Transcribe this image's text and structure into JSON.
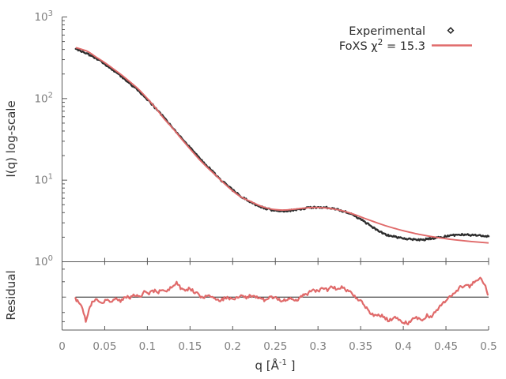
{
  "figure": {
    "background": "#ffffff",
    "xlabel_parts": {
      "base": "q [Å",
      "sup": "-1",
      "close": " ]"
    },
    "ylabel_main": "I(q) log-scale",
    "ylabel_residual": "Residual",
    "legend": {
      "experimental_label": "Experimental",
      "fit_label_prefix": "FoXS χ",
      "fit_label_sup": "2",
      "fit_label_suffix": " = 15.3",
      "marker": "diamond-icon",
      "line_color": "#e06a6a",
      "marker_color": "#222222"
    },
    "colors": {
      "experimental": "#2e2e2e",
      "fit": "#e06a6a",
      "border": "#595959",
      "tick_label": "#7f7f7f",
      "axis_label": "#333333",
      "refline": "#1a1a1a"
    },
    "x_ticks": [
      {
        "v": 0.0,
        "label": "0"
      },
      {
        "v": 0.05,
        "label": "0.05"
      },
      {
        "v": 0.1,
        "label": "0.1"
      },
      {
        "v": 0.15,
        "label": "0.15"
      },
      {
        "v": 0.2,
        "label": "0.2"
      },
      {
        "v": 0.25,
        "label": "0.25"
      },
      {
        "v": 0.3,
        "label": "0.3"
      },
      {
        "v": 0.35,
        "label": "0.35"
      },
      {
        "v": 0.4,
        "label": "0.4"
      },
      {
        "v": 0.45,
        "label": "0.45"
      },
      {
        "v": 0.5,
        "label": "0.5"
      }
    ],
    "y_ticks_main_exponents": [
      0,
      1,
      2,
      3
    ]
  },
  "chart_data": [
    {
      "type": "line",
      "panel": "main",
      "xlabel": "q [Å^-1]",
      "ylabel": "I(q) log-scale",
      "xlim": [
        0,
        0.5
      ],
      "ylim": [
        1,
        1000
      ],
      "yscale": "log",
      "grid": false,
      "legend_position": "top-right",
      "series": [
        {
          "name": "Experimental",
          "style": "noisy-points",
          "color": "#2e2e2e",
          "points": [
            [
              0.016,
              400
            ],
            [
              0.02,
              391
            ],
            [
              0.024,
              378
            ],
            [
              0.028,
              361
            ],
            [
              0.032,
              344
            ],
            [
              0.036,
              327
            ],
            [
              0.04,
              308
            ],
            [
              0.045,
              286
            ],
            [
              0.05,
              264
            ],
            [
              0.055,
              243
            ],
            [
              0.06,
              222
            ],
            [
              0.065,
              203
            ],
            [
              0.07,
              185
            ],
            [
              0.075,
              168
            ],
            [
              0.08,
              152
            ],
            [
              0.085,
              137
            ],
            [
              0.09,
              123
            ],
            [
              0.095,
              110
            ],
            [
              0.1,
              98
            ],
            [
              0.105,
              86
            ],
            [
              0.11,
              75.5
            ],
            [
              0.115,
              66
            ],
            [
              0.12,
              57.5
            ],
            [
              0.125,
              50
            ],
            [
              0.13,
              43.5
            ],
            [
              0.135,
              37.8
            ],
            [
              0.14,
              32.8
            ],
            [
              0.145,
              28.6
            ],
            [
              0.15,
              25.0
            ],
            [
              0.155,
              21.9
            ],
            [
              0.16,
              19.2
            ],
            [
              0.165,
              16.9
            ],
            [
              0.17,
              14.9
            ],
            [
              0.175,
              13.2
            ],
            [
              0.18,
              11.7
            ],
            [
              0.185,
              10.4
            ],
            [
              0.19,
              9.3
            ],
            [
              0.195,
              8.35
            ],
            [
              0.2,
              7.55
            ],
            [
              0.21,
              6.3
            ],
            [
              0.22,
              5.45
            ],
            [
              0.23,
              4.85
            ],
            [
              0.24,
              4.45
            ],
            [
              0.25,
              4.22
            ],
            [
              0.26,
              4.18
            ],
            [
              0.27,
              4.26
            ],
            [
              0.28,
              4.42
            ],
            [
              0.29,
              4.58
            ],
            [
              0.3,
              4.66
            ],
            [
              0.31,
              4.6
            ],
            [
              0.32,
              4.42
            ],
            [
              0.33,
              4.15
            ],
            [
              0.34,
              3.85
            ],
            [
              0.35,
              3.3
            ],
            [
              0.36,
              2.85
            ],
            [
              0.37,
              2.42
            ],
            [
              0.38,
              2.15
            ],
            [
              0.39,
              2.02
            ],
            [
              0.4,
              1.95
            ],
            [
              0.41,
              1.87
            ],
            [
              0.42,
              1.85
            ],
            [
              0.43,
              1.91
            ],
            [
              0.44,
              1.98
            ],
            [
              0.45,
              2.04
            ],
            [
              0.46,
              2.12
            ],
            [
              0.47,
              2.16
            ],
            [
              0.48,
              2.13
            ],
            [
              0.49,
              2.11
            ],
            [
              0.5,
              2.05
            ]
          ]
        },
        {
          "name": "FoXS χ2 = 15.3",
          "style": "smooth-line",
          "color": "#e06a6a",
          "points": [
            [
              0.016,
              420
            ],
            [
              0.02,
              410
            ],
            [
              0.03,
              378
            ],
            [
              0.04,
              322
            ],
            [
              0.05,
              276
            ],
            [
              0.06,
              232
            ],
            [
              0.07,
              194
            ],
            [
              0.08,
              159
            ],
            [
              0.09,
              129
            ],
            [
              0.1,
              100
            ],
            [
              0.11,
              76
            ],
            [
              0.12,
              56
            ],
            [
              0.13,
              42.8
            ],
            [
              0.14,
              32.0
            ],
            [
              0.15,
              24.2
            ],
            [
              0.16,
              18.4
            ],
            [
              0.17,
              14.4
            ],
            [
              0.18,
              11.5
            ],
            [
              0.19,
              9.15
            ],
            [
              0.2,
              7.4
            ],
            [
              0.21,
              6.2
            ],
            [
              0.22,
              5.55
            ],
            [
              0.23,
              4.95
            ],
            [
              0.24,
              4.55
            ],
            [
              0.25,
              4.35
            ],
            [
              0.26,
              4.3
            ],
            [
              0.27,
              4.38
            ],
            [
              0.28,
              4.5
            ],
            [
              0.29,
              4.6
            ],
            [
              0.3,
              4.62
            ],
            [
              0.31,
              4.55
            ],
            [
              0.32,
              4.4
            ],
            [
              0.33,
              4.18
            ],
            [
              0.34,
              3.88
            ],
            [
              0.35,
              3.55
            ],
            [
              0.36,
              3.25
            ],
            [
              0.37,
              2.98
            ],
            [
              0.38,
              2.75
            ],
            [
              0.39,
              2.56
            ],
            [
              0.4,
              2.4
            ],
            [
              0.42,
              2.15
            ],
            [
              0.44,
              1.98
            ],
            [
              0.46,
              1.86
            ],
            [
              0.48,
              1.77
            ],
            [
              0.5,
              1.7
            ]
          ]
        }
      ]
    },
    {
      "type": "line",
      "panel": "residual",
      "ylabel": "Residual",
      "xlim": [
        0,
        0.5
      ],
      "ylim": [
        0.62,
        1.67
      ],
      "yscale": "log",
      "refline": 1.0,
      "series": [
        {
          "name": "Residual ratio",
          "style": "noisy-line",
          "color": "#e06a6a",
          "points": [
            [
              0.0157,
              0.977
            ],
            [
              0.0204,
              0.902
            ],
            [
              0.0241,
              0.851
            ],
            [
              0.0278,
              0.7
            ],
            [
              0.0315,
              0.832
            ],
            [
              0.0352,
              0.933
            ],
            [
              0.0407,
              0.966
            ],
            [
              0.0463,
              0.912
            ],
            [
              0.0519,
              0.955
            ],
            [
              0.0574,
              0.923
            ],
            [
              0.063,
              0.977
            ],
            [
              0.0685,
              0.944
            ],
            [
              0.0741,
              1.012
            ],
            [
              0.0796,
              0.977
            ],
            [
              0.0852,
              1.035
            ],
            [
              0.0907,
              1.012
            ],
            [
              0.0963,
              1.072
            ],
            [
              0.1019,
              1.047
            ],
            [
              0.1074,
              1.096
            ],
            [
              0.113,
              1.072
            ],
            [
              0.1185,
              1.122
            ],
            [
              0.1241,
              1.096
            ],
            [
              0.1296,
              1.175
            ],
            [
              0.1343,
              1.23
            ],
            [
              0.1389,
              1.148
            ],
            [
              0.1444,
              1.109
            ],
            [
              0.15,
              1.135
            ],
            [
              0.1556,
              1.072
            ],
            [
              0.1611,
              1.023
            ],
            [
              0.1667,
              0.989
            ],
            [
              0.1722,
              1.035
            ],
            [
              0.1778,
              0.989
            ],
            [
              0.1852,
              0.955
            ],
            [
              0.1926,
              0.989
            ],
            [
              0.2,
              0.966
            ],
            [
              0.2074,
              1.012
            ],
            [
              0.2148,
              0.989
            ],
            [
              0.2222,
              1.023
            ],
            [
              0.2296,
              1.0
            ],
            [
              0.237,
              0.955
            ],
            [
              0.2444,
              1.0
            ],
            [
              0.2519,
              0.977
            ],
            [
              0.2593,
              0.944
            ],
            [
              0.2667,
              0.989
            ],
            [
              0.2741,
              0.955
            ],
            [
              0.2815,
              1.012
            ],
            [
              0.2889,
              1.059
            ],
            [
              0.2944,
              1.122
            ],
            [
              0.3,
              1.084
            ],
            [
              0.3056,
              1.148
            ],
            [
              0.3111,
              1.109
            ],
            [
              0.3167,
              1.175
            ],
            [
              0.3222,
              1.122
            ],
            [
              0.3278,
              1.148
            ],
            [
              0.3333,
              1.109
            ],
            [
              0.3389,
              1.072
            ],
            [
              0.3444,
              1.0
            ],
            [
              0.35,
              0.944
            ],
            [
              0.3556,
              0.862
            ],
            [
              0.3611,
              0.794
            ],
            [
              0.3667,
              0.759
            ],
            [
              0.3722,
              0.778
            ],
            [
              0.3778,
              0.741
            ],
            [
              0.3833,
              0.708
            ],
            [
              0.3889,
              0.75
            ],
            [
              0.3944,
              0.724
            ],
            [
              0.4,
              0.7
            ],
            [
              0.4056,
              0.678
            ],
            [
              0.4111,
              0.724
            ],
            [
              0.4167,
              0.741
            ],
            [
              0.4222,
              0.708
            ],
            [
              0.4278,
              0.768
            ],
            [
              0.4333,
              0.75
            ],
            [
              0.4389,
              0.832
            ],
            [
              0.4444,
              0.891
            ],
            [
              0.45,
              0.955
            ],
            [
              0.4556,
              1.023
            ],
            [
              0.4611,
              1.084
            ],
            [
              0.4667,
              1.148
            ],
            [
              0.4722,
              1.202
            ],
            [
              0.4778,
              1.161
            ],
            [
              0.4833,
              1.245
            ],
            [
              0.4889,
              1.318
            ],
            [
              0.4926,
              1.273
            ],
            [
              0.4963,
              1.202
            ],
            [
              0.499,
              1.035
            ]
          ]
        }
      ]
    }
  ]
}
